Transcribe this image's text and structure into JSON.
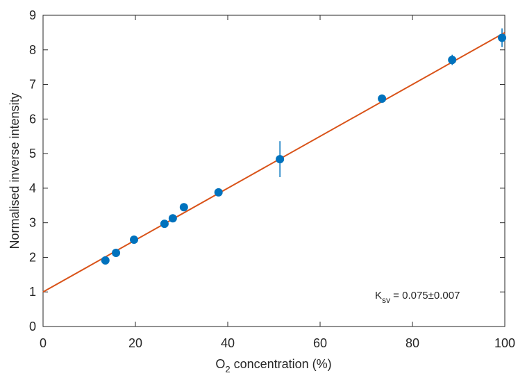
{
  "chart_data": {
    "type": "scatter",
    "xlabel": {
      "main": "O",
      "sub": "2",
      "rest": " concentration (%)"
    },
    "ylabel": "Normalised inverse intensity",
    "annotation": {
      "main": "K",
      "sub": "sv",
      "rest": " = 0.075±0.007"
    },
    "xlim": [
      0,
      100
    ],
    "xticks": [
      0,
      20,
      40,
      60,
      80,
      100
    ],
    "ylim": [
      0,
      9
    ],
    "yticks": [
      0,
      1,
      2,
      3,
      4,
      5,
      6,
      7,
      8,
      9
    ],
    "series": [
      {
        "type": "errorbar",
        "color": "#0072bd",
        "x": [
          13.5,
          15.8,
          19.7,
          26.3,
          28.1,
          30.5,
          38.0,
          51.3,
          73.4,
          88.6,
          99.4
        ],
        "values": [
          1.91,
          2.13,
          2.51,
          2.97,
          3.13,
          3.45,
          3.88,
          4.84,
          6.59,
          7.71,
          8.35
        ],
        "errors": [
          0.05,
          0.05,
          0.05,
          0.05,
          0.05,
          0.06,
          0.06,
          0.52,
          0.06,
          0.15,
          0.27
        ]
      },
      {
        "type": "line",
        "color": "#d95319",
        "x": [
          0,
          100
        ],
        "values": [
          1,
          8.5
        ]
      }
    ]
  }
}
